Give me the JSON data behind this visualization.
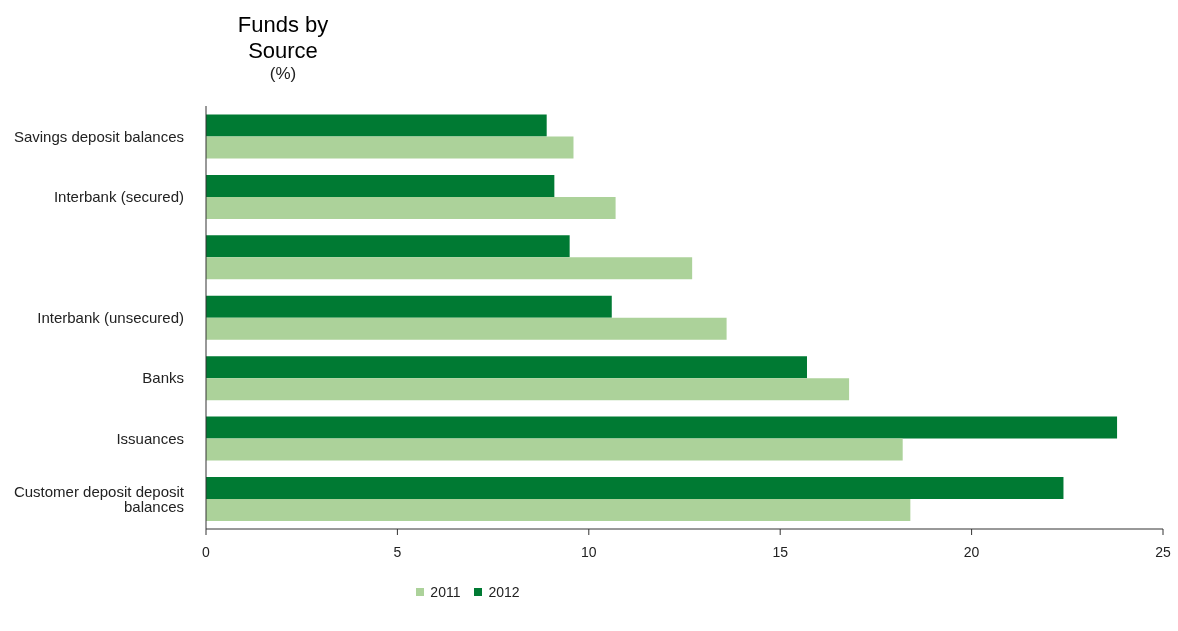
{
  "chart_data": {
    "type": "bar",
    "orientation": "horizontal",
    "title": "Funds by Source",
    "subtitle": "(%)",
    "categories": [
      "Savings deposit balances",
      "Interbank (secured)",
      null,
      "Interbank (unsecured)",
      "Banks",
      "Issuances",
      "Customer deposit deposit balances"
    ],
    "series": [
      {
        "name": "2011",
        "color": "#acd29a",
        "values": [
          9.6,
          10.7,
          12.7,
          13.6,
          16.8,
          18.2,
          18.4
        ]
      },
      {
        "name": "2012",
        "color": "#007a33",
        "values": [
          8.9,
          9.1,
          9.5,
          10.6,
          15.7,
          23.8,
          22.4
        ]
      }
    ],
    "xlim": [
      0,
      25
    ],
    "xticks": [
      0,
      5,
      10,
      15,
      20,
      25
    ],
    "grid": false,
    "legend": "bottom"
  }
}
